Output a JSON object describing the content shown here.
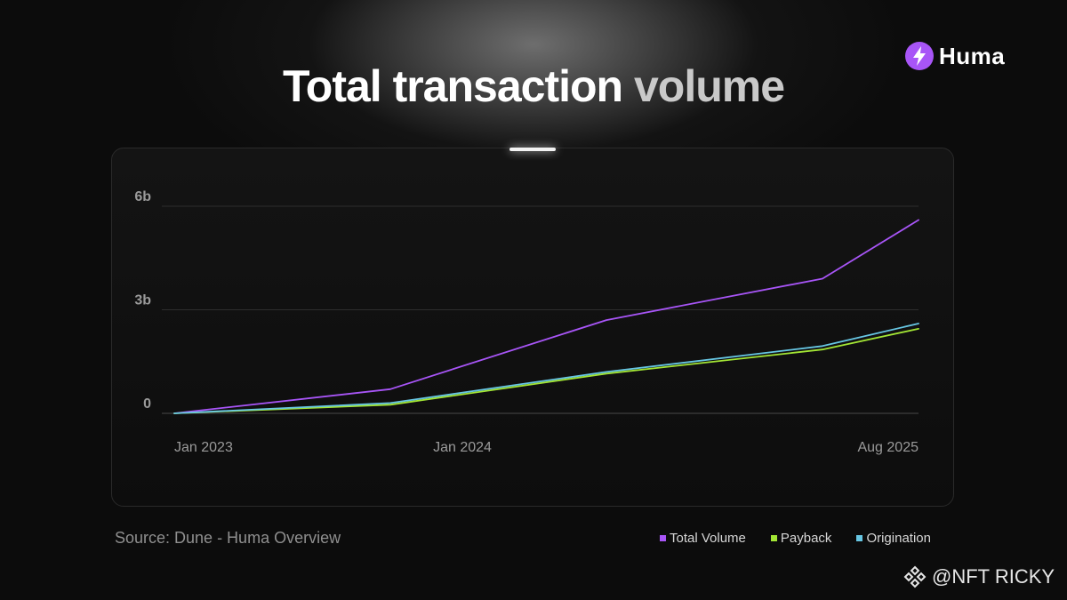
{
  "header": {
    "title_part1": "Total transaction",
    "title_part2": " volume",
    "logo_text": "Huma",
    "logo_color": "#a855f7"
  },
  "footer": {
    "source": "Source: Dune - Huma Overview",
    "watermark": "@NFT RICKY"
  },
  "chart_data": {
    "type": "line",
    "x": [
      "2023-01",
      "2023-10",
      "2024-07",
      "2025-04",
      "2025-08"
    ],
    "xtick_labels": [
      "Jan 2023",
      "Jan 2024",
      "Aug 2025"
    ],
    "xtick_values": [
      "2023-01",
      "2024-01",
      "2025-08"
    ],
    "ytick_labels": [
      "0",
      "3b",
      "6b"
    ],
    "ytick_values": [
      0,
      3,
      6
    ],
    "ylim": [
      0,
      6
    ],
    "grid": true,
    "legend": "bottom-right",
    "series": [
      {
        "name": "Total Volume",
        "color": "#a855f7",
        "values": [
          0.0,
          0.7,
          2.7,
          3.9,
          5.6
        ]
      },
      {
        "name": "Payback",
        "color": "#a3e635",
        "values": [
          0.0,
          0.25,
          1.15,
          1.85,
          2.45
        ]
      },
      {
        "name": "Origination",
        "color": "#67c6e3",
        "values": [
          0.0,
          0.3,
          1.2,
          1.95,
          2.6
        ]
      }
    ]
  }
}
